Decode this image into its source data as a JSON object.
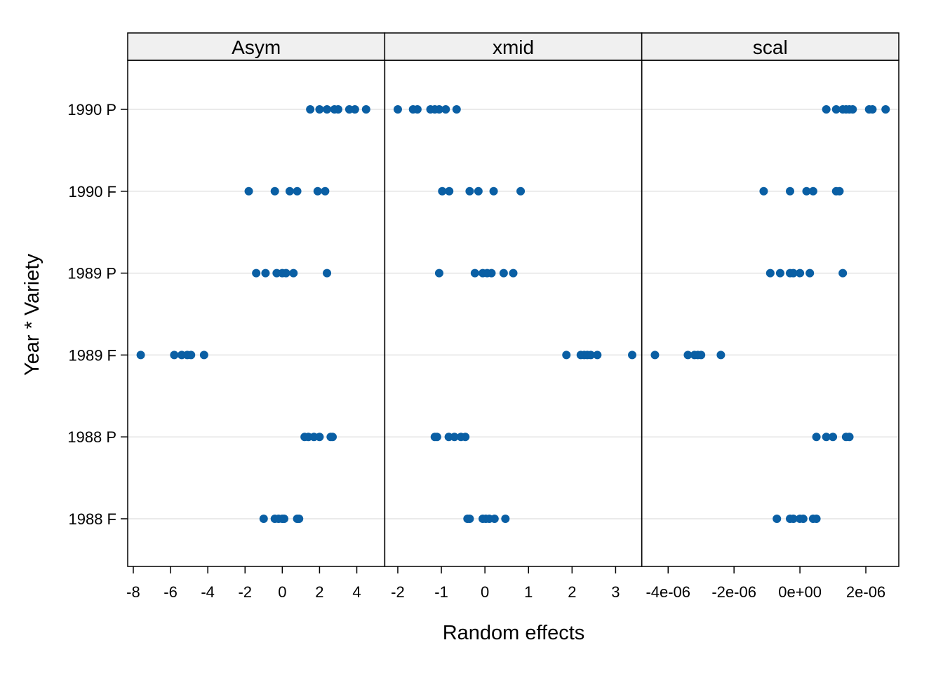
{
  "chart_data": {
    "type": "scatter",
    "xlabel": "Random effects",
    "ylabel": "Year * Variety",
    "grid": true,
    "point_color": "#0a5fa4",
    "categories": [
      "1988 F",
      "1988 P",
      "1989 F",
      "1989 P",
      "1990 F",
      "1990 P"
    ],
    "panels": [
      {
        "name": "Asym",
        "xlim": [
          -8.3,
          5.5
        ],
        "ticks": [
          -8,
          -6,
          -4,
          -2,
          0,
          2,
          4
        ],
        "tick_labels": [
          "-8",
          "-6",
          "-4",
          "-2",
          "0",
          "2",
          "4"
        ],
        "points": {
          "1990 P": [
            1.5,
            2.0,
            2.4,
            2.8,
            3.0,
            3.6,
            3.9,
            4.5
          ],
          "1990 F": [
            -1.8,
            -0.4,
            0.4,
            0.8,
            1.9,
            2.3
          ],
          "1989 P": [
            -1.4,
            -0.9,
            -0.3,
            0.0,
            0.2,
            0.6,
            2.4
          ],
          "1989 F": [
            -7.6,
            -5.8,
            -5.4,
            -5.1,
            -4.9,
            -4.2
          ],
          "1988 P": [
            1.2,
            1.4,
            1.7,
            2.0,
            2.6,
            2.7
          ],
          "1988 F": [
            -1.0,
            -0.4,
            -0.2,
            0.0,
            0.1,
            0.8,
            0.9
          ]
        }
      },
      {
        "name": "xmid",
        "xlim": [
          -2.3,
          3.6
        ],
        "ticks": [
          -2,
          -1,
          0,
          1,
          2,
          3
        ],
        "tick_labels": [
          "-2",
          "-1",
          "0",
          "1",
          "2",
          "3"
        ],
        "points": {
          "1990 P": [
            -2.0,
            -1.65,
            -1.55,
            -1.25,
            -1.15,
            -1.05,
            -0.9,
            -0.65
          ],
          "1990 F": [
            -0.98,
            -0.82,
            -0.35,
            -0.15,
            0.2,
            0.82
          ],
          "1989 P": [
            -1.05,
            -0.23,
            -0.05,
            0.05,
            0.15,
            0.43,
            0.65
          ],
          "1989 F": [
            1.87,
            2.2,
            2.28,
            2.35,
            2.43,
            2.58,
            3.38
          ],
          "1988 P": [
            -1.15,
            -1.1,
            -0.83,
            -0.7,
            -0.55,
            -0.45
          ],
          "1988 F": [
            -0.4,
            -0.35,
            -0.05,
            0.02,
            0.1,
            0.22,
            0.47
          ]
        }
      },
      {
        "name": "scal",
        "xlim": [
          -4.8e-06,
          3e-06
        ],
        "ticks": [
          -4e-06,
          -2e-06,
          0.0,
          2e-06
        ],
        "tick_labels": [
          "-4e-06",
          "-2e-06",
          "0e+00",
          "2e-06"
        ],
        "points": {
          "1990 P": [
            8e-07,
            1.1e-06,
            1.3e-06,
            1.4e-06,
            1.5e-06,
            1.6e-06,
            2.1e-06,
            2.2e-06,
            2.6e-06
          ],
          "1990 F": [
            -1.1e-06,
            -3e-07,
            2e-07,
            4e-07,
            1.1e-06,
            1.2e-06
          ],
          "1989 P": [
            -9e-07,
            -6e-07,
            -3e-07,
            -2e-07,
            0.0,
            3e-07,
            1.3e-06
          ],
          "1989 F": [
            -4.4e-06,
            -3.4e-06,
            -3.2e-06,
            -3.1e-06,
            -3e-06,
            -2.4e-06
          ],
          "1988 P": [
            5e-07,
            8e-07,
            1e-06,
            1.4e-06,
            1.5e-06
          ],
          "1988 F": [
            -7e-07,
            -3e-07,
            -2e-07,
            0.0,
            1e-07,
            4e-07,
            5e-07
          ]
        }
      }
    ]
  }
}
